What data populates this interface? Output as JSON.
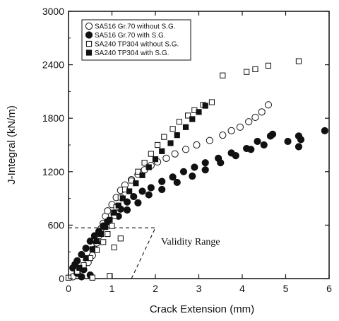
{
  "chart_data": {
    "type": "scatter",
    "xlabel": "Crack Extension (mm)",
    "ylabel": "J-Integral (kN/m)",
    "xlim": [
      0,
      6
    ],
    "ylim": [
      0,
      3000
    ],
    "xticks": [
      "0",
      "1",
      "2",
      "3",
      "4",
      "5",
      "6"
    ],
    "yticks": [
      "0",
      "600",
      "1200",
      "1800",
      "2400",
      "3000"
    ],
    "legend_position": "top-left",
    "annotation": "Validity Range",
    "validity_range": {
      "horizontal_limit_y": 570,
      "horizontal_limit_x_end": 2.0,
      "slanted_line": [
        [
          1.45,
          0
        ],
        [
          2.0,
          570
        ]
      ]
    },
    "series": [
      {
        "name": "SA516 Gr.70 without S.G.",
        "marker": "open-circle",
        "points": [
          [
            0.1,
            20
          ],
          [
            0.2,
            60
          ],
          [
            0.3,
            110
          ],
          [
            0.45,
            180
          ],
          [
            0.55,
            260
          ],
          [
            0.6,
            330
          ],
          [
            0.65,
            400
          ],
          [
            0.7,
            480
          ],
          [
            0.75,
            560
          ],
          [
            0.8,
            620
          ],
          [
            0.85,
            700
          ],
          [
            0.9,
            760
          ],
          [
            1.0,
            830
          ],
          [
            1.1,
            910
          ],
          [
            1.2,
            990
          ],
          [
            1.3,
            1050
          ],
          [
            1.45,
            1110
          ],
          [
            1.6,
            1170
          ],
          [
            1.75,
            1220
          ],
          [
            1.9,
            1270
          ],
          [
            2.05,
            1310
          ],
          [
            2.25,
            1350
          ],
          [
            2.45,
            1400
          ],
          [
            2.7,
            1450
          ],
          [
            2.95,
            1500
          ],
          [
            3.25,
            1550
          ],
          [
            3.55,
            1610
          ],
          [
            3.75,
            1660
          ],
          [
            3.95,
            1700
          ],
          [
            4.15,
            1760
          ],
          [
            4.3,
            1810
          ],
          [
            4.45,
            1870
          ],
          [
            4.6,
            1950
          ]
        ]
      },
      {
        "name": "SA516 Gr.70 with S.G.",
        "marker": "filled-circle",
        "points": [
          [
            0.1,
            120
          ],
          [
            0.15,
            160
          ],
          [
            0.2,
            200
          ],
          [
            0.3,
            270
          ],
          [
            0.4,
            340
          ],
          [
            0.5,
            420
          ],
          [
            0.6,
            480
          ],
          [
            0.7,
            530
          ],
          [
            0.8,
            590
          ],
          [
            0.9,
            640
          ],
          [
            1.05,
            720
          ],
          [
            1.2,
            780
          ],
          [
            1.35,
            860
          ],
          [
            1.5,
            920
          ],
          [
            1.7,
            980
          ],
          [
            1.9,
            1020
          ],
          [
            2.15,
            1090
          ],
          [
            2.4,
            1140
          ],
          [
            2.65,
            1200
          ],
          [
            2.9,
            1250
          ],
          [
            3.15,
            1300
          ],
          [
            3.45,
            1350
          ],
          [
            3.75,
            1410
          ],
          [
            4.1,
            1460
          ],
          [
            4.35,
            1540
          ],
          [
            4.7,
            1620
          ],
          [
            5.05,
            1540
          ],
          [
            5.3,
            1480
          ],
          [
            5.9,
            1660
          ],
          [
            1.15,
            700
          ],
          [
            1.35,
            770
          ],
          [
            1.6,
            850
          ],
          [
            1.85,
            940
          ],
          [
            2.15,
            1000
          ],
          [
            2.5,
            1080
          ],
          [
            2.85,
            1150
          ],
          [
            3.15,
            1220
          ],
          [
            3.5,
            1300
          ],
          [
            3.85,
            1380
          ],
          [
            4.2,
            1450
          ],
          [
            4.5,
            1500
          ],
          [
            4.65,
            1600
          ],
          [
            5.3,
            1600
          ],
          [
            5.35,
            1560
          ],
          [
            0.2,
            60
          ],
          [
            0.3,
            20
          ],
          [
            0.35,
            100
          ],
          [
            0.5,
            40
          ]
        ]
      },
      {
        "name": "SA240 TP304 without S.G.",
        "marker": "open-square",
        "points": [
          [
            0.0,
            10
          ],
          [
            0.2,
            80
          ],
          [
            0.35,
            150
          ],
          [
            0.5,
            230
          ],
          [
            0.65,
            320
          ],
          [
            0.8,
            410
          ],
          [
            0.9,
            500
          ],
          [
            1.0,
            590
          ],
          [
            1.05,
            700
          ],
          [
            1.1,
            800
          ],
          [
            1.2,
            910
          ],
          [
            1.3,
            1000
          ],
          [
            1.45,
            1100
          ],
          [
            1.6,
            1200
          ],
          [
            1.75,
            1300
          ],
          [
            1.9,
            1400
          ],
          [
            2.05,
            1500
          ],
          [
            2.2,
            1590
          ],
          [
            2.4,
            1680
          ],
          [
            2.55,
            1760
          ],
          [
            2.75,
            1830
          ],
          [
            2.9,
            1890
          ],
          [
            3.1,
            1950
          ],
          [
            3.3,
            1980
          ],
          [
            3.55,
            2280
          ],
          [
            4.1,
            2320
          ],
          [
            4.3,
            2350
          ],
          [
            4.6,
            2390
          ],
          [
            5.3,
            2440
          ],
          [
            1.05,
            350
          ],
          [
            1.2,
            450
          ],
          [
            0.95,
            30
          ],
          [
            0.55,
            10
          ]
        ]
      },
      {
        "name": "SA240 TP304 with S.G.",
        "marker": "filled-square",
        "points": [
          [
            0.25,
            120
          ],
          [
            0.4,
            230
          ],
          [
            0.55,
            330
          ],
          [
            0.65,
            420
          ],
          [
            0.75,
            500
          ],
          [
            0.85,
            580
          ],
          [
            0.95,
            660
          ],
          [
            1.05,
            740
          ],
          [
            1.15,
            820
          ],
          [
            1.25,
            900
          ],
          [
            1.4,
            980
          ],
          [
            1.55,
            1070
          ],
          [
            1.7,
            1160
          ],
          [
            1.85,
            1250
          ],
          [
            2.0,
            1340
          ],
          [
            2.15,
            1430
          ],
          [
            2.35,
            1520
          ],
          [
            2.5,
            1610
          ],
          [
            2.7,
            1700
          ],
          [
            2.85,
            1790
          ],
          [
            3.0,
            1870
          ],
          [
            3.15,
            1940
          ]
        ]
      }
    ]
  }
}
